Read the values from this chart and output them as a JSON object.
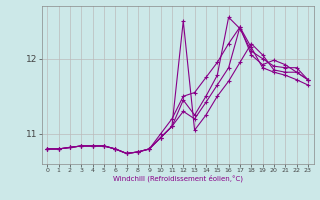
{
  "xlabel": "Windchill (Refroidissement éolien,°C)",
  "background_color": "#cce8e8",
  "line_color": "#880088",
  "grid_color": "#bbbbbb",
  "xlim": [
    -0.5,
    23.5
  ],
  "ylim": [
    10.6,
    12.7
  ],
  "yticks": [
    11,
    12
  ],
  "xticks": [
    0,
    1,
    2,
    3,
    4,
    5,
    6,
    7,
    8,
    9,
    10,
    11,
    12,
    13,
    14,
    15,
    16,
    17,
    18,
    19,
    20,
    21,
    22,
    23
  ],
  "series": [
    [
      10.8,
      10.8,
      10.82,
      10.84,
      10.84,
      10.84,
      10.8,
      10.74,
      10.76,
      10.8,
      10.95,
      11.1,
      12.5,
      11.05,
      11.25,
      11.5,
      11.7,
      11.95,
      12.2,
      12.05,
      11.85,
      11.82,
      11.82,
      11.72
    ],
    [
      10.8,
      10.8,
      10.82,
      10.84,
      10.84,
      10.84,
      10.8,
      10.74,
      10.76,
      10.8,
      10.95,
      11.1,
      11.45,
      11.25,
      11.5,
      11.78,
      12.55,
      12.4,
      12.1,
      12.0,
      11.9,
      11.88,
      11.88,
      11.72
    ],
    [
      10.8,
      10.8,
      10.82,
      10.84,
      10.84,
      10.84,
      10.8,
      10.74,
      10.76,
      10.8,
      10.95,
      11.1,
      11.3,
      11.2,
      11.42,
      11.65,
      11.88,
      12.42,
      12.15,
      11.88,
      11.82,
      11.78,
      11.72,
      11.65
    ],
    [
      10.8,
      10.8,
      10.82,
      10.84,
      10.84,
      10.84,
      10.8,
      10.74,
      10.76,
      10.8,
      11.0,
      11.2,
      11.5,
      11.55,
      11.75,
      11.95,
      12.2,
      12.42,
      12.05,
      11.92,
      11.98,
      11.92,
      11.82,
      11.72
    ]
  ]
}
